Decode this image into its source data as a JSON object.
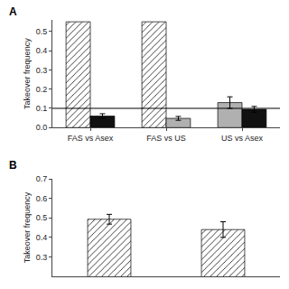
{
  "chart_data": [
    {
      "type": "bar",
      "title": "A",
      "categories": [
        "FAS vs Asex",
        "FAS vs US",
        "US vs Asex"
      ],
      "series": [
        {
          "color": "white",
          "values": [
            0.55,
            0.55,
            null
          ]
        },
        {
          "color": "#b0b0b0",
          "values": [
            null,
            0.048,
            0.13
          ],
          "errors": [
            null,
            0.01,
            0.03
          ]
        },
        {
          "color": "#111111",
          "values": [
            0.06,
            null,
            0.095
          ],
          "errors": [
            0.012,
            null,
            0.015
          ]
        }
      ],
      "hline": 0.1,
      "ylabel": "Takeover frequency",
      "ylim": [
        0,
        0.56
      ],
      "yticks": [
        {
          "value": 0,
          "label": "0.0"
        },
        0.1,
        0.2,
        0.3,
        0.4,
        0.5
      ],
      "grid": false
    },
    {
      "type": "bar",
      "title": "B",
      "categories": [
        null,
        null
      ],
      "values": [
        0.493,
        0.44
      ],
      "errors": [
        0.025,
        0.04
      ],
      "color": "white",
      "ylabel": "Takeover frequency",
      "ylim": [
        0.2,
        0.7
      ],
      "yticks": [
        0.3,
        0.4,
        0.5,
        0.6,
        0.7
      ],
      "grid": false,
      "tick_labels": "y"
    }
  ]
}
